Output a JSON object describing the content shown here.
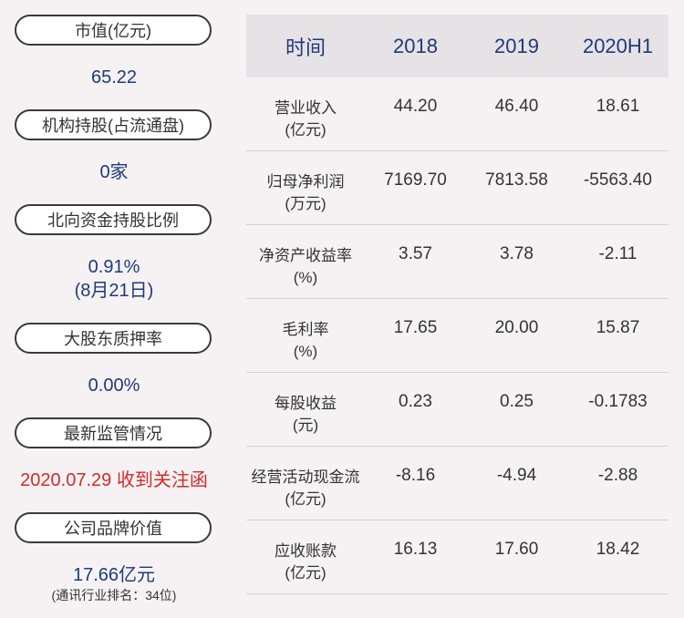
{
  "left_panel": [
    {
      "label": "市值(亿元)",
      "value": "65.22"
    },
    {
      "label": "机构持股(占流通盘)",
      "value": "0家"
    },
    {
      "label": "北向资金持股比例",
      "value": "0.91%",
      "value2": "(8月21日)"
    },
    {
      "label": "大股东质押率",
      "value": "0.00%"
    },
    {
      "label": "最新监管情况",
      "value": "2020.07.29 收到关注函"
    },
    {
      "label": "公司品牌价值",
      "value": "17.66亿元",
      "note": "(通讯行业排名：34位)"
    }
  ],
  "table": {
    "headers": [
      "时间",
      "2018",
      "2019",
      "2020H1"
    ],
    "rows": [
      {
        "name": "营业收入",
        "unit": "(亿元)",
        "values": [
          "44.20",
          "46.40",
          "18.61"
        ]
      },
      {
        "name": "归母净利润",
        "unit": "(万元)",
        "values": [
          "7169.70",
          "7813.58",
          "-5563.40"
        ]
      },
      {
        "name": "净资产收益率",
        "unit": "(%)",
        "values": [
          "3.57",
          "3.78",
          "-2.11"
        ]
      },
      {
        "name": "毛利率",
        "unit": "(%)",
        "values": [
          "17.65",
          "20.00",
          "15.87"
        ]
      },
      {
        "name": "每股收益",
        "unit": "(元)",
        "values": [
          "0.23",
          "0.25",
          "-0.1783"
        ]
      },
      {
        "name": "经营活动现金流",
        "unit": "(亿元)",
        "values": [
          "-8.16",
          "-4.94",
          "-2.88"
        ]
      },
      {
        "name": "应收账款",
        "unit": "(亿元)",
        "values": [
          "16.13",
          "17.60",
          "18.42"
        ]
      }
    ]
  },
  "colors": {
    "value_blue": "#1e3a7a",
    "alert_red": "#d42a2a",
    "header_bg": "#e6e2e5"
  }
}
